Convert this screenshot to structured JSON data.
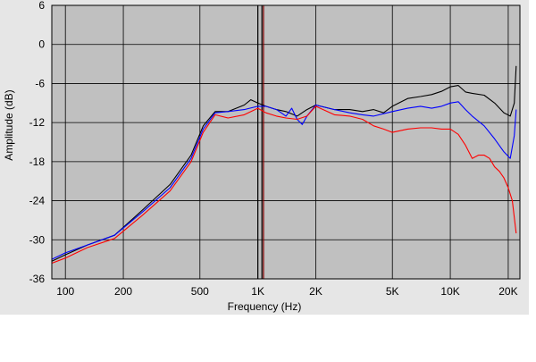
{
  "colors": {
    "plot_background": "#c0c0c0",
    "outer_background": "#e6e6e6",
    "grid": "#000000",
    "series_black": "#000000",
    "series_blue": "#0000ff",
    "series_red": "#ff0000"
  },
  "chart_data": {
    "type": "line",
    "title": "",
    "xlabel": "Frequency (Hz)",
    "ylabel": "Amplitude (dB)",
    "x_scale": "log",
    "xlim": [
      85,
      23000
    ],
    "ylim": [
      -36,
      6
    ],
    "grid": true,
    "x_ticks": [
      {
        "value": 100,
        "label": "100"
      },
      {
        "value": 200,
        "label": "200"
      },
      {
        "value": 500,
        "label": "500"
      },
      {
        "value": 1000,
        "label": "1K"
      },
      {
        "value": 2000,
        "label": "2K"
      },
      {
        "value": 5000,
        "label": "5K"
      },
      {
        "value": 10000,
        "label": "10K"
      },
      {
        "value": 20000,
        "label": "20K"
      }
    ],
    "y_ticks": [
      {
        "value": 6,
        "label": "6"
      },
      {
        "value": 0,
        "label": "0"
      },
      {
        "value": -6,
        "label": "-6"
      },
      {
        "value": -12,
        "label": "-12"
      },
      {
        "value": -18,
        "label": "-18"
      },
      {
        "value": -24,
        "label": "-24"
      },
      {
        "value": -30,
        "label": "-30"
      },
      {
        "value": -36,
        "label": "-36"
      }
    ],
    "markers": [
      {
        "x": 1000,
        "color": "#000000"
      },
      {
        "x": 1050,
        "color": "#000000"
      },
      {
        "x": 1070,
        "color": "#800000"
      }
    ],
    "series": [
      {
        "color": "#000000",
        "points": [
          [
            85,
            -33.3
          ],
          [
            100,
            -32.3
          ],
          [
            130,
            -30.8
          ],
          [
            180,
            -29.3
          ],
          [
            250,
            -25.5
          ],
          [
            350,
            -21.5
          ],
          [
            450,
            -17
          ],
          [
            520,
            -12.5
          ],
          [
            600,
            -10.3
          ],
          [
            700,
            -10.3
          ],
          [
            850,
            -9.3
          ],
          [
            920,
            -8.5
          ],
          [
            1000,
            -9
          ],
          [
            1100,
            -9.5
          ],
          [
            1250,
            -10
          ],
          [
            1400,
            -10.3
          ],
          [
            1600,
            -11
          ],
          [
            1800,
            -10
          ],
          [
            2000,
            -9.3
          ],
          [
            2500,
            -10
          ],
          [
            3000,
            -10
          ],
          [
            3500,
            -10.3
          ],
          [
            4000,
            -10
          ],
          [
            4500,
            -10.5
          ],
          [
            5000,
            -9.5
          ],
          [
            6000,
            -8.3
          ],
          [
            7000,
            -8
          ],
          [
            8000,
            -7.7
          ],
          [
            9000,
            -7.2
          ],
          [
            10000,
            -6.5
          ],
          [
            11000,
            -6.3
          ],
          [
            12000,
            -7.3
          ],
          [
            13000,
            -7.5
          ],
          [
            15000,
            -7.8
          ],
          [
            17000,
            -9
          ],
          [
            19000,
            -10.5
          ],
          [
            20500,
            -11
          ],
          [
            21500,
            -9
          ],
          [
            22000,
            -3.3
          ]
        ]
      },
      {
        "color": "#0000ff",
        "points": [
          [
            85,
            -33
          ],
          [
            100,
            -32
          ],
          [
            130,
            -30.8
          ],
          [
            180,
            -29.3
          ],
          [
            250,
            -25.8
          ],
          [
            350,
            -22
          ],
          [
            450,
            -17.5
          ],
          [
            520,
            -13
          ],
          [
            600,
            -10.5
          ],
          [
            700,
            -10.3
          ],
          [
            850,
            -10
          ],
          [
            1000,
            -9.5
          ],
          [
            1100,
            -9.5
          ],
          [
            1250,
            -10
          ],
          [
            1400,
            -11
          ],
          [
            1500,
            -9.8
          ],
          [
            1600,
            -11.5
          ],
          [
            1700,
            -12.3
          ],
          [
            1800,
            -11
          ],
          [
            2000,
            -9.3
          ],
          [
            2500,
            -10
          ],
          [
            3000,
            -10.5
          ],
          [
            3500,
            -10.8
          ],
          [
            4000,
            -11
          ],
          [
            5000,
            -10.3
          ],
          [
            6000,
            -9.8
          ],
          [
            7000,
            -9.5
          ],
          [
            8000,
            -9.8
          ],
          [
            9000,
            -9.5
          ],
          [
            10000,
            -9
          ],
          [
            11000,
            -8.8
          ],
          [
            12000,
            -10
          ],
          [
            13000,
            -11
          ],
          [
            15000,
            -12.5
          ],
          [
            17000,
            -14.5
          ],
          [
            19000,
            -16.5
          ],
          [
            20500,
            -17.5
          ],
          [
            21500,
            -14
          ],
          [
            22000,
            -10
          ]
        ]
      },
      {
        "color": "#ff0000",
        "points": [
          [
            85,
            -33.6
          ],
          [
            100,
            -32.8
          ],
          [
            130,
            -31.2
          ],
          [
            180,
            -29.8
          ],
          [
            250,
            -26.3
          ],
          [
            350,
            -22.5
          ],
          [
            450,
            -18
          ],
          [
            520,
            -13.5
          ],
          [
            600,
            -10.8
          ],
          [
            700,
            -11.3
          ],
          [
            850,
            -10.8
          ],
          [
            1000,
            -9.8
          ],
          [
            1100,
            -10.5
          ],
          [
            1250,
            -11
          ],
          [
            1400,
            -11.3
          ],
          [
            1600,
            -11.5
          ],
          [
            1800,
            -11
          ],
          [
            2000,
            -9.5
          ],
          [
            2500,
            -10.8
          ],
          [
            3000,
            -11
          ],
          [
            3500,
            -11.5
          ],
          [
            4000,
            -12.5
          ],
          [
            4500,
            -13
          ],
          [
            5000,
            -13.5
          ],
          [
            6000,
            -13
          ],
          [
            7000,
            -12.8
          ],
          [
            8000,
            -12.8
          ],
          [
            9000,
            -13
          ],
          [
            10000,
            -13
          ],
          [
            11000,
            -13.8
          ],
          [
            12000,
            -15.5
          ],
          [
            13000,
            -17.5
          ],
          [
            14000,
            -17
          ],
          [
            15000,
            -17
          ],
          [
            16000,
            -17.5
          ],
          [
            17000,
            -18.8
          ],
          [
            18000,
            -19.5
          ],
          [
            19000,
            -20.5
          ],
          [
            20000,
            -22
          ],
          [
            21000,
            -24
          ],
          [
            22000,
            -29
          ]
        ]
      }
    ]
  }
}
